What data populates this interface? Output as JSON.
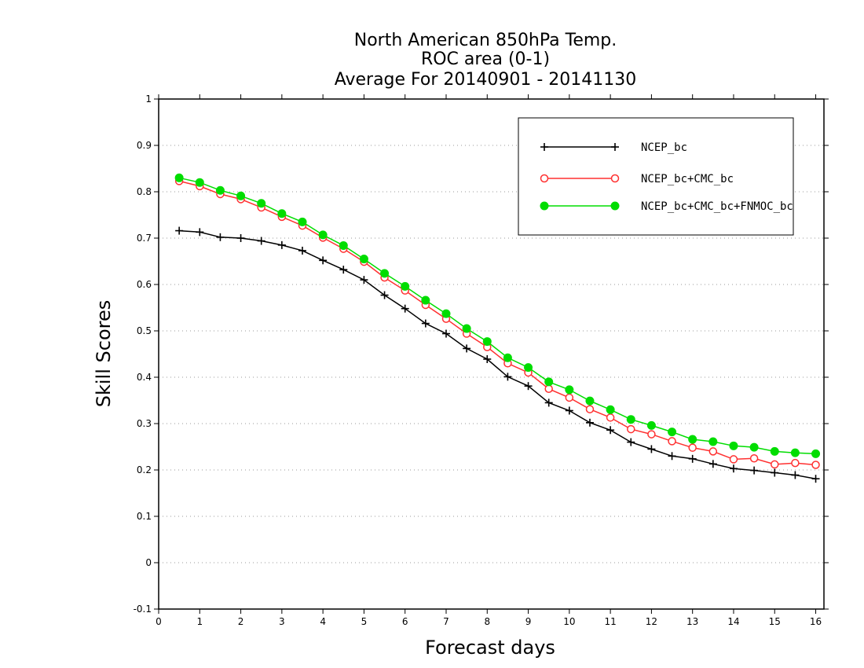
{
  "chart_data": {
    "type": "line",
    "title_lines": [
      "North American 850hPa Temp.",
      "ROC area (0-1)",
      "Average For 20140901 - 20141130"
    ],
    "xlabel": "Forecast days",
    "ylabel": "Skill Scores",
    "xlim": [
      0,
      16.2
    ],
    "ylim": [
      -0.1,
      1.0
    ],
    "x_ticks": [
      0,
      1,
      2,
      3,
      4,
      5,
      6,
      7,
      8,
      9,
      10,
      11,
      12,
      13,
      14,
      15,
      16
    ],
    "y_ticks": [
      -0.1,
      0,
      0.1,
      0.2,
      0.3,
      0.4,
      0.5,
      0.6,
      0.7,
      0.8,
      0.9,
      1
    ],
    "y_tick_labels": [
      "-0.1",
      "0",
      "0.1",
      "0.2",
      "0.3",
      "0.4",
      "0.5",
      "0.6",
      "0.7",
      "0.8",
      "0.9",
      "1"
    ],
    "grid": "horizontal-dotted",
    "legend_position": "top-right",
    "x": [
      0.5,
      1,
      1.5,
      2,
      2.5,
      3,
      3.5,
      4,
      4.5,
      5,
      5.5,
      6,
      6.5,
      7,
      7.5,
      8,
      8.5,
      9,
      9.5,
      10,
      10.5,
      11,
      11.5,
      12,
      12.5,
      13,
      13.5,
      14,
      14.5,
      15,
      15.5,
      16
    ],
    "series": [
      {
        "name": "NCEP_bc",
        "color": "#000000",
        "marker": "plus",
        "values": [
          0.716,
          0.713,
          0.702,
          0.7,
          0.694,
          0.685,
          0.673,
          0.652,
          0.632,
          0.61,
          0.577,
          0.548,
          0.516,
          0.494,
          0.462,
          0.439,
          0.401,
          0.381,
          0.345,
          0.328,
          0.302,
          0.286,
          0.26,
          0.245,
          0.23,
          0.224,
          0.213,
          0.203,
          0.199,
          0.194,
          0.189,
          0.181
        ]
      },
      {
        "name": "NCEP_bc+CMC_bc",
        "color": "#ff3030",
        "marker": "open-circle",
        "values": [
          0.823,
          0.812,
          0.795,
          0.784,
          0.766,
          0.746,
          0.727,
          0.701,
          0.677,
          0.649,
          0.615,
          0.587,
          0.556,
          0.526,
          0.494,
          0.465,
          0.43,
          0.41,
          0.375,
          0.356,
          0.331,
          0.313,
          0.288,
          0.277,
          0.262,
          0.248,
          0.24,
          0.223,
          0.225,
          0.212,
          0.215,
          0.211
        ]
      },
      {
        "name": "NCEP_bc+CMC_bc+FNMOC_bc",
        "color": "#00dd00",
        "marker": "filled-circle",
        "values": [
          0.83,
          0.82,
          0.803,
          0.791,
          0.775,
          0.753,
          0.735,
          0.707,
          0.684,
          0.655,
          0.624,
          0.596,
          0.566,
          0.537,
          0.505,
          0.477,
          0.442,
          0.421,
          0.39,
          0.373,
          0.349,
          0.33,
          0.309,
          0.296,
          0.282,
          0.266,
          0.261,
          0.252,
          0.249,
          0.24,
          0.237,
          0.235
        ]
      }
    ]
  }
}
